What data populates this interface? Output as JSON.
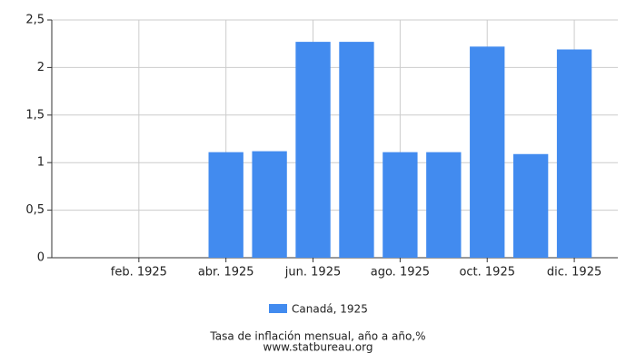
{
  "chart_data": {
    "type": "bar",
    "categories": [
      null,
      "feb. 1925",
      null,
      "abr. 1925",
      null,
      "jun. 1925",
      null,
      "ago. 1925",
      null,
      "oct. 1925",
      null,
      "dic. 1925"
    ],
    "series": [
      {
        "name": "Canadá, 1925",
        "color": "#428bef",
        "values": [
          null,
          null,
          null,
          1.11,
          1.12,
          2.27,
          2.27,
          1.11,
          1.11,
          2.22,
          1.09,
          2.19
        ]
      }
    ],
    "ylim": [
      0,
      2.5
    ],
    "yticks": [
      0,
      {
        "value": 0.5,
        "label": "0,5"
      },
      1,
      {
        "value": 1.5,
        "label": "1,5"
      },
      2,
      {
        "value": 2.5,
        "label": "2,5"
      }
    ],
    "grid": true,
    "footer": [
      "Tasa de inflación mensual, año a año,%",
      "www.statbureau.org"
    ]
  }
}
